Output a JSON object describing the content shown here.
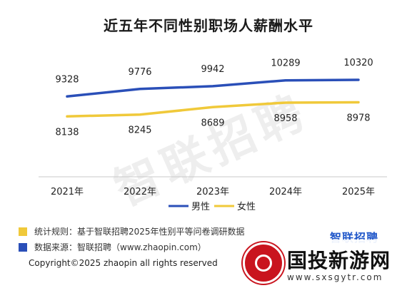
{
  "chart_data": {
    "type": "line",
    "title": "近五年不同性别职场人薪酬水平",
    "categories": [
      "2021年",
      "2022年",
      "2023年",
      "2024年",
      "2025年"
    ],
    "ylim": [
      7000,
      11000
    ],
    "grid": false,
    "legend_position": "bottom",
    "series": [
      {
        "name": "男性",
        "values": [
          9328,
          9776,
          9942,
          10289,
          10320
        ],
        "color": "#2a4fb8"
      },
      {
        "name": "女性",
        "values": [
          8138,
          8245,
          8689,
          8958,
          8978
        ],
        "color": "#f0c93a"
      }
    ]
  },
  "watermark": "智联招聘",
  "notes": [
    {
      "label": "统计规则：",
      "text": "基于智联招聘2025年性别平等问卷调研数据",
      "color": "#f0c93a"
    },
    {
      "label": "数据来源：",
      "text": "智联招聘（www.zhaopin.com）",
      "color": "#2a4fb8"
    }
  ],
  "brand": "智联招聘",
  "copyright": "Copyright©2025 zhaopin all rights reserved",
  "site": {
    "name": "国投新游网",
    "url": "www.sxsgytr.com"
  }
}
